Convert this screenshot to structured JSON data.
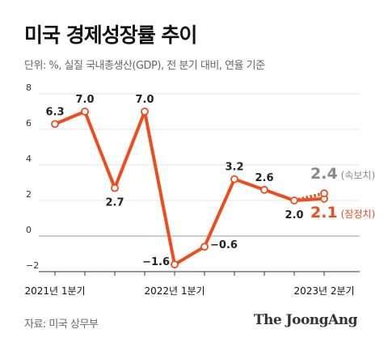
{
  "header": {
    "title": "미국 경제성장률 추이",
    "subtitle": "단위: %, 실질 국내총생산(GDP), 전 분기 대비, 연율 기준"
  },
  "footer": {
    "source": "자료: 미국 상무부",
    "brand": "The JoongAng"
  },
  "colors": {
    "line": "#ee4c1c",
    "advance": "#888888",
    "grid": "#e3e3e3",
    "zero_line": "#999999"
  },
  "chart_data": {
    "type": "line",
    "title": "미국 경제성장률 추이",
    "subtitle": "단위: %, 실질 국내총생산(GDP), 전 분기 대비, 연율 기준",
    "x": [
      "2021Q1",
      "2021Q2",
      "2021Q3",
      "2021Q4",
      "2022Q1",
      "2022Q2",
      "2022Q3",
      "2022Q4",
      "2023Q1",
      "2023Q2"
    ],
    "x_tick_labels": [
      {
        "index": 0,
        "label": "2021년 1분기"
      },
      {
        "index": 4,
        "label": "2022년 1분기"
      },
      {
        "index": 9,
        "label": "2023년 2분기"
      }
    ],
    "series": [
      {
        "values": [
          6.3,
          7.0,
          2.7,
          7.0,
          -1.6,
          -0.6,
          3.2,
          2.6,
          2.0,
          2.1
        ],
        "labels": [
          "6.3",
          "7.0",
          "2.7",
          "7.0",
          "−1.6",
          "−0.6",
          "3.2",
          "2.6",
          "2.0",
          "2.1"
        ]
      }
    ],
    "highlights": [
      {
        "value": 2.4,
        "text": "2.4",
        "note": "(속보치)",
        "color": "#888888"
      },
      {
        "value": 2.1,
        "text": "2.1",
        "note": "(잠정치)",
        "color": "#ee4c1c"
      }
    ],
    "ylim": [
      -2,
      8
    ],
    "yticks": [
      8,
      6,
      4,
      2,
      0,
      -2
    ],
    "ytick_labels": [
      "8",
      "6",
      "4",
      "2",
      "0",
      "−2"
    ],
    "grid": true
  }
}
